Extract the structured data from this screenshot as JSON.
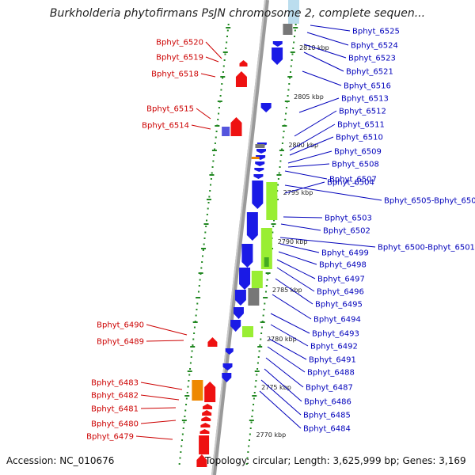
{
  "header": {
    "title": "Burkholderia phytofirmans PsJN chromosome 2, complete sequen..."
  },
  "footer": {
    "accession": "Accession: NC_010676",
    "topology": "Topology: circular; Length: 3,625,999 bp; Genes: 3,169"
  },
  "colors": {
    "forward_gene": "#ee1111",
    "reverse_gene": "#1a1ae6",
    "forward_label": "#cc0000",
    "reverse_label": "#0000bb",
    "rna_gene": "#99ee33",
    "other_feature": "#777777",
    "orange_feature": "#ee8800",
    "dotted_ring": "#228822"
  },
  "coordinate_ticks": [
    "2810 kbp",
    "2805 kbp",
    "2800 kbp",
    "2795 kbp",
    "2790 kbp",
    "2785 kbp",
    "2780 kbp",
    "2775 kbp",
    "2770 kbp"
  ],
  "forward_genes": [
    "Bphyt_6520",
    "Bphyt_6519",
    "Bphyt_6518",
    "Bphyt_6515",
    "Bphyt_6514",
    "Bphyt_6490",
    "Bphyt_6489",
    "Bphyt_6483",
    "Bphyt_6482",
    "Bphyt_6481",
    "Bphyt_6480",
    "Bphyt_6479"
  ],
  "reverse_genes": [
    "Bphyt_6525",
    "Bphyt_6524",
    "Bphyt_6523",
    "Bphyt_6521",
    "Bphyt_6516",
    "Bphyt_6513",
    "Bphyt_6512",
    "Bphyt_6511",
    "Bphyt_6510",
    "Bphyt_6509",
    "Bphyt_6508",
    "Bphyt_6507",
    "Bphyt_6505-Bphyt_6506",
    "Bphyt_6504",
    "Bphyt_6503",
    "Bphyt_6502",
    "Bphyt_6500-Bphyt_6501",
    "Bphyt_6499",
    "Bphyt_6498",
    "Bphyt_6497",
    "Bphyt_6496",
    "Bphyt_6495",
    "Bphyt_6494",
    "Bphyt_6493",
    "Bphyt_6492",
    "Bphyt_6491",
    "Bphyt_6488",
    "Bphyt_6487",
    "Bphyt_6486",
    "Bphyt_6485",
    "Bphyt_6484"
  ]
}
